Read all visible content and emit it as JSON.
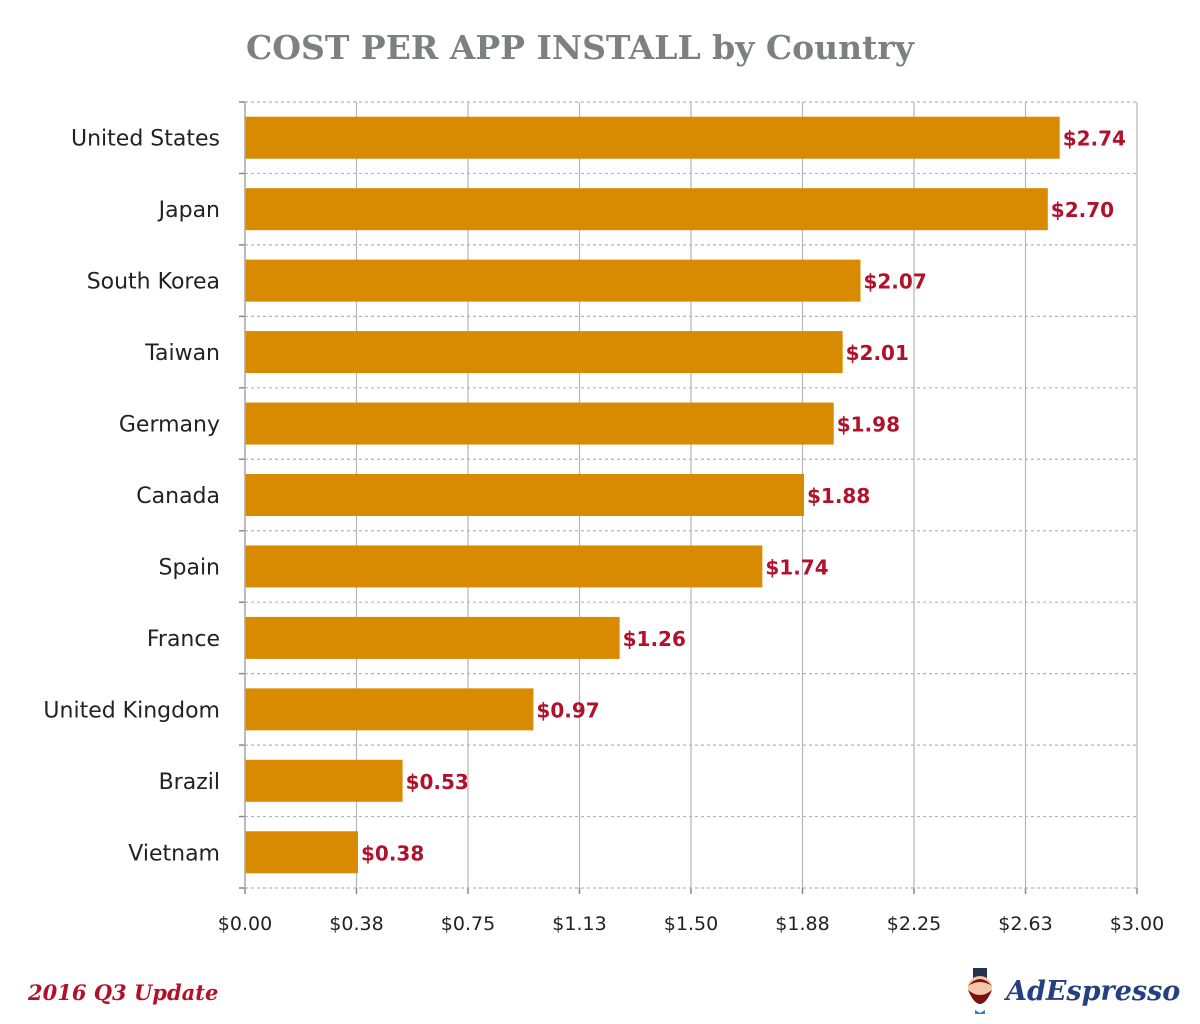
{
  "chart_data": {
    "type": "bar",
    "orientation": "horizontal",
    "title": "COST PER APP INSTALL by Country",
    "categories": [
      "United States",
      "Japan",
      "South Korea",
      "Taiwan",
      "Germany",
      "Canada",
      "Spain",
      "France",
      "United Kingdom",
      "Brazil",
      "Vietnam"
    ],
    "values": [
      2.74,
      2.7,
      2.07,
      2.01,
      1.98,
      1.88,
      1.74,
      1.26,
      0.97,
      0.53,
      0.38
    ],
    "data_labels": [
      "$2.74",
      "$2.70",
      "$2.07",
      "$2.01",
      "$1.98",
      "$1.88",
      "$1.74",
      "$1.26",
      "$0.97",
      "$0.53",
      "$0.38"
    ],
    "xticks": [
      0,
      0.375,
      0.75,
      1.125,
      1.5,
      1.875,
      2.25,
      2.625,
      3.0
    ],
    "xtick_labels": [
      "$0.00",
      "$0.38",
      "$0.75",
      "$1.13",
      "$1.50",
      "$1.88",
      "$2.25",
      "$2.63",
      "$3.00"
    ],
    "xlim": [
      0,
      3
    ],
    "xlabel": "",
    "ylabel": "",
    "grid": true,
    "bar_color": "#d88b00",
    "label_color": "#b0122b"
  },
  "footer": {
    "update": "2016 Q3 Update",
    "brand": "AdEspresso"
  }
}
